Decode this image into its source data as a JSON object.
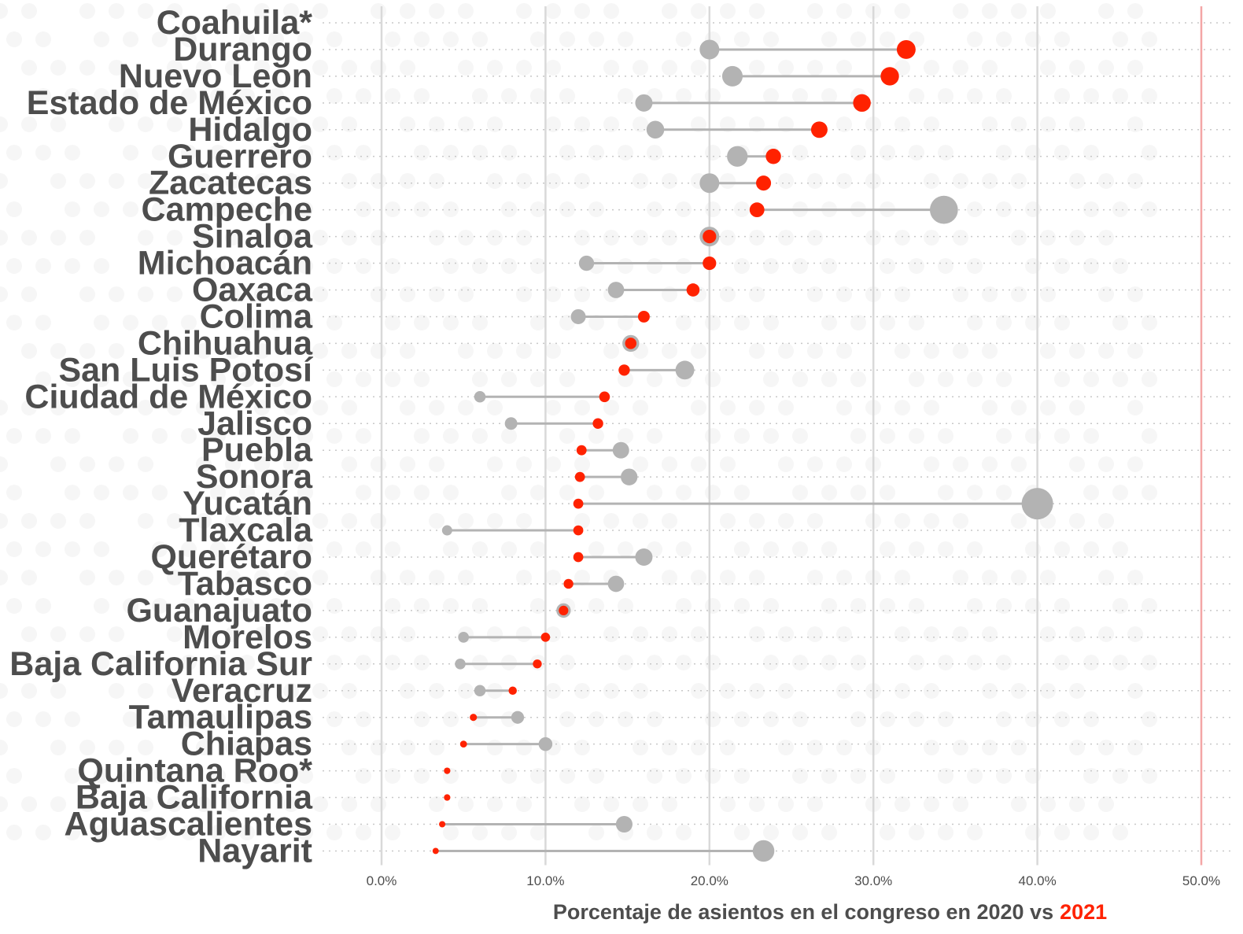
{
  "chart_data": {
    "type": "dumbbell",
    "xlabel_prefix": "Porcentaje de asientos en el congreso en 2020 vs",
    "xlabel_highlight": "2021",
    "xlim": [
      0,
      50
    ],
    "xticks": [
      "0.0%",
      "10.0%",
      "20.0%",
      "30.0%",
      "40.0%",
      "50.0%"
    ],
    "xtick_values": [
      0,
      10,
      20,
      30,
      40,
      50
    ],
    "reference_line": 50,
    "colors": {
      "2020": "#b3b3b3",
      "2021": "#ff2200",
      "reference": "#f4a6a6",
      "grid": "#d9d9d9",
      "text": "#4d4d4d"
    },
    "series": [
      {
        "name": "2020"
      },
      {
        "name": "2021"
      }
    ],
    "states": [
      {
        "name": "Coahuila*",
        "v2020": null,
        "v2021": null
      },
      {
        "name": "Durango",
        "v2020": 20.0,
        "v2021": 32.0
      },
      {
        "name": "Nuevo Leon",
        "v2020": 21.4,
        "v2021": 31.0
      },
      {
        "name": "Estado de México",
        "v2020": 16.0,
        "v2021": 29.3
      },
      {
        "name": "Hidalgo",
        "v2020": 16.7,
        "v2021": 26.7
      },
      {
        "name": "Guerrero",
        "v2020": 21.7,
        "v2021": 23.9
      },
      {
        "name": "Zacatecas",
        "v2020": 20.0,
        "v2021": 23.3
      },
      {
        "name": "Campeche",
        "v2020": 34.3,
        "v2021": 22.9
      },
      {
        "name": "Sinaloa",
        "v2020": 20.0,
        "v2021": 20.0
      },
      {
        "name": "Michoacán",
        "v2020": 12.5,
        "v2021": 20.0
      },
      {
        "name": "Oaxaca",
        "v2020": 14.3,
        "v2021": 19.0
      },
      {
        "name": "Colima",
        "v2020": 12.0,
        "v2021": 16.0
      },
      {
        "name": "Chihuahua",
        "v2020": 15.2,
        "v2021": 15.2
      },
      {
        "name": "San Luis Potosí",
        "v2020": 18.5,
        "v2021": 14.8
      },
      {
        "name": "Ciudad de México",
        "v2020": 6.0,
        "v2021": 13.6
      },
      {
        "name": "Jalisco",
        "v2020": 7.9,
        "v2021": 13.2
      },
      {
        "name": "Puebla",
        "v2020": 14.6,
        "v2021": 12.2
      },
      {
        "name": "Sonora",
        "v2020": 15.1,
        "v2021": 12.1
      },
      {
        "name": "Yucatán",
        "v2020": 40.0,
        "v2021": 12.0
      },
      {
        "name": "Tlaxcala",
        "v2020": 4.0,
        "v2021": 12.0
      },
      {
        "name": "Querétaro",
        "v2020": 16.0,
        "v2021": 12.0
      },
      {
        "name": "Tabasco",
        "v2020": 14.3,
        "v2021": 11.4
      },
      {
        "name": "Guanajuato",
        "v2020": 11.1,
        "v2021": 11.1
      },
      {
        "name": "Morelos",
        "v2020": 5.0,
        "v2021": 10.0
      },
      {
        "name": "Baja California Sur",
        "v2020": 4.8,
        "v2021": 9.5
      },
      {
        "name": "Veracruz",
        "v2020": 6.0,
        "v2021": 8.0
      },
      {
        "name": "Tamaulipas",
        "v2020": 8.3,
        "v2021": 5.6
      },
      {
        "name": "Chiapas",
        "v2020": 10.0,
        "v2021": 5.0
      },
      {
        "name": "Quintana Roo*",
        "v2020": null,
        "v2021": 4.0
      },
      {
        "name": "Baja California",
        "v2020": null,
        "v2021": 4.0
      },
      {
        "name": "Aguascalientes",
        "v2020": 14.8,
        "v2021": 3.7
      },
      {
        "name": "Nayarit",
        "v2020": 23.3,
        "v2021": 3.3
      }
    ]
  }
}
